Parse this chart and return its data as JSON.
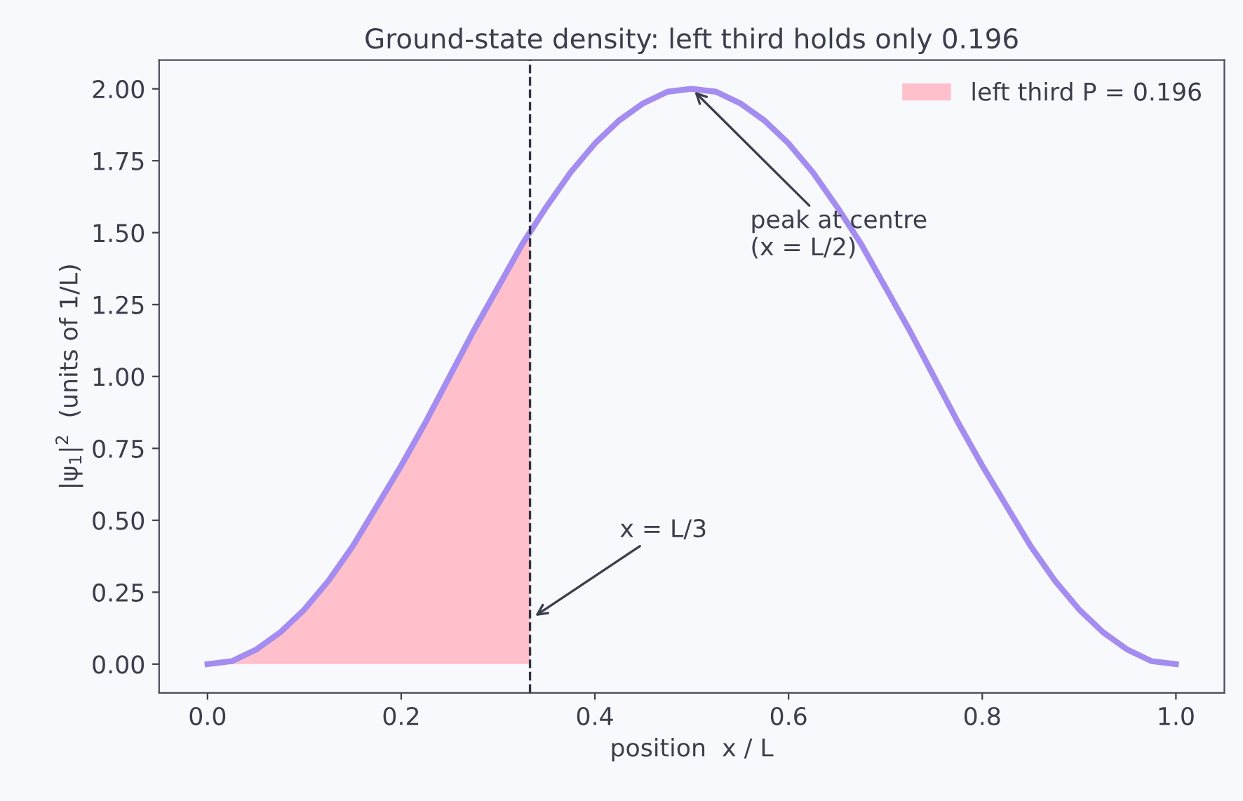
{
  "chart_data": {
    "type": "line",
    "title": "Ground-state density: left third holds only 0.196",
    "xlabel": "position  x / L",
    "ylabel": "|ψ$_{1}$|$^{2}$  (units of 1/L)",
    "xlim": [
      -0.05,
      1.05
    ],
    "ylim": [
      -0.1,
      2.1
    ],
    "xticks": [
      {
        "value": 0,
        "label": "0.0"
      },
      0.2,
      0.4,
      0.6,
      0.8,
      {
        "value": 1,
        "label": "1.0"
      }
    ],
    "yticks": [
      {
        "value": 0,
        "label": "0.00"
      },
      {
        "value": 0.25,
        "label": "0.25"
      },
      {
        "value": 0.5,
        "label": "0.50"
      },
      {
        "value": 0.75,
        "label": "0.75"
      },
      {
        "value": 1,
        "label": "1.00"
      },
      {
        "value": 1.25,
        "label": "1.25"
      },
      {
        "value": 1.5,
        "label": "1.50"
      },
      {
        "value": 1.75,
        "label": "1.75"
      },
      {
        "value": 2,
        "label": "2.00"
      }
    ],
    "grid": false,
    "legend": "top right",
    "series": [
      {
        "type": "area",
        "name": "left third P = 0.196",
        "color": "#ffc0cb",
        "x": [
          0,
          0.025,
          0.05,
          0.075,
          0.1,
          0.125,
          0.15,
          0.175,
          0.2,
          0.225,
          0.25,
          0.275,
          0.3,
          0.325,
          0.333
        ],
        "values": [
          0,
          0.01,
          0.05,
          0.11,
          0.19,
          0.29,
          0.41,
          0.55,
          0.69,
          0.84,
          1.0,
          1.16,
          1.31,
          1.46,
          1.5
        ]
      },
      {
        "color": "#a48cf0",
        "x": [
          0,
          0.025,
          0.05,
          0.075,
          0.1,
          0.125,
          0.15,
          0.175,
          0.2,
          0.225,
          0.25,
          0.275,
          0.3,
          0.325,
          0.35,
          0.375,
          0.4,
          0.425,
          0.45,
          0.475,
          0.5,
          0.525,
          0.55,
          0.575,
          0.6,
          0.625,
          0.65,
          0.675,
          0.7,
          0.725,
          0.75,
          0.775,
          0.8,
          0.825,
          0.85,
          0.875,
          0.9,
          0.925,
          0.95,
          0.975,
          1.0
        ],
        "values": [
          0,
          0.01,
          0.05,
          0.11,
          0.19,
          0.29,
          0.41,
          0.55,
          0.69,
          0.84,
          1.0,
          1.16,
          1.31,
          1.46,
          1.59,
          1.71,
          1.81,
          1.89,
          1.95,
          1.99,
          2.0,
          1.99,
          1.95,
          1.89,
          1.81,
          1.71,
          1.59,
          1.46,
          1.31,
          1.16,
          1.0,
          0.84,
          0.69,
          0.55,
          0.41,
          0.29,
          0.19,
          0.11,
          0.05,
          0.01,
          0
        ]
      }
    ],
    "ref_lines": [
      {
        "axis": "x",
        "value": 0.333,
        "color": "#2e3340",
        "line_style": "dashed"
      }
    ],
    "annotations": [
      {
        "text": "peak at centre\n(x = L/2)",
        "x": 0.5,
        "y": 2.0
      },
      {
        "text": "x = L/3",
        "x": 0.335,
        "y": 0.16
      }
    ]
  }
}
